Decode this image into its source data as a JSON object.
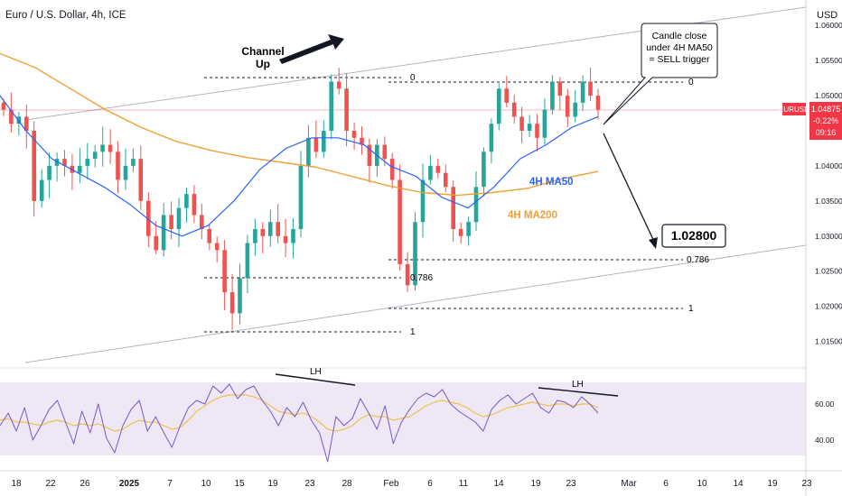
{
  "header": {
    "title": "Euro / U.S. Dollar, 4h, ICE",
    "currency": "USD"
  },
  "price_badge": {
    "symbol": "EURUSD",
    "price": "1.04875",
    "change": "-0.22%",
    "countdown": "09:16"
  },
  "annotations": {
    "channel": [
      "Channel",
      "Up"
    ],
    "callout": [
      "Candle close",
      "under 4H MA50",
      "= SELL trigger"
    ],
    "target": "1.02800",
    "ma50": "4H MA50",
    "ma200": "4H MA200",
    "fib_left": {
      "zero": "0",
      "level": "0.786",
      "one": "1"
    },
    "fib_right": {
      "zero": "0",
      "level": "0.786",
      "one": "1"
    },
    "lh_left": "LH",
    "lh_right": "LH"
  },
  "colors": {
    "candle_up": "#26a69a",
    "candle_down": "#ef5350",
    "ma50": "#2962ff",
    "ma200": "#f2a033",
    "rsi_line": "#7e57c2",
    "rsi_ma": "#f0c24a",
    "rsi_band": "#ede7f6",
    "badge": "#f23645"
  },
  "chart_data": {
    "type": "line",
    "title": "Euro / U.S. Dollar, 4h, ICE",
    "x_ticks": [
      "18",
      "22",
      "26",
      "2025",
      "7",
      "10",
      "15",
      "19",
      "23",
      "28",
      "Feb",
      "6",
      "11",
      "14",
      "19",
      "23",
      "Mar",
      "6",
      "10",
      "14",
      "19",
      "23"
    ],
    "y_ticks": [
      "1.06000",
      "1.05500",
      "1.05000",
      "1.04500",
      "1.04000",
      "1.03500",
      "1.03000",
      "1.02500",
      "1.02000",
      "1.01500"
    ],
    "ylim": [
      1.0125,
      1.0625
    ],
    "rsi_ticks": [
      "60.00",
      "40.00"
    ],
    "rsi_ylim": [
      25,
      75
    ],
    "current_price": 1.04875,
    "target_price": 1.028,
    "series": [
      {
        "name": "EURUSD",
        "values": [
          1.048,
          1.046,
          1.047,
          1.045,
          1.035,
          1.038,
          1.04,
          1.041,
          1.04,
          1.039,
          1.04,
          1.041,
          1.042,
          1.043,
          1.042,
          1.038,
          1.04,
          1.041,
          1.035,
          1.03,
          1.028,
          1.033,
          1.031,
          1.034,
          1.036,
          1.033,
          1.031,
          1.029,
          1.028,
          1.022,
          1.019,
          1.024,
          1.029,
          1.031,
          1.03,
          1.032,
          1.03,
          1.029,
          1.031,
          1.04,
          1.044,
          1.042,
          1.045,
          1.052,
          1.051,
          1.045,
          1.044,
          1.043,
          1.04,
          1.043,
          1.041,
          1.038,
          1.026,
          1.023,
          1.032,
          1.038,
          1.04,
          1.039,
          1.037,
          1.031,
          1.03,
          1.032,
          1.037,
          1.042,
          1.046,
          1.051,
          1.049,
          1.047,
          1.045,
          1.046,
          1.044,
          1.048,
          1.052,
          1.05,
          1.047,
          1.049,
          1.052,
          1.05,
          1.048
        ]
      },
      {
        "name": "4H MA50",
        "values": [
          1.05,
          1.045,
          1.041,
          1.039,
          1.037,
          1.0345,
          1.0315,
          1.03,
          1.0315,
          1.035,
          1.0395,
          1.0425,
          1.044,
          1.044,
          1.043,
          1.04,
          1.0385,
          1.0355,
          1.034,
          1.037,
          1.041,
          1.043,
          1.0455,
          1.047
        ]
      },
      {
        "name": "4H MA200",
        "values": [
          1.056,
          1.054,
          1.051,
          1.048,
          1.0455,
          1.0435,
          1.0422,
          1.0412,
          1.0405,
          1.0398,
          1.0385,
          1.0372,
          1.0362,
          1.0358,
          1.0362,
          1.0368,
          1.0382,
          1.0392
        ]
      },
      {
        "name": "RSI",
        "values": [
          48,
          55,
          45,
          58,
          40,
          48,
          57,
          62,
          50,
          38,
          56,
          44,
          60,
          41,
          33,
          48,
          57,
          62,
          45,
          53,
          44,
          36,
          48,
          58,
          62,
          60,
          70,
          66,
          71,
          63,
          68,
          70,
          62,
          56,
          48,
          58,
          53,
          61,
          51,
          44,
          28,
          53,
          48,
          52,
          63,
          55,
          46,
          59,
          38,
          50,
          57,
          63,
          66,
          64,
          68,
          60,
          56,
          53,
          50,
          45,
          57,
          62,
          65,
          60,
          63,
          66,
          58,
          55,
          62,
          61,
          58,
          64,
          60,
          55
        ]
      },
      {
        "name": "RSI MA",
        "values": [
          51,
          52,
          50,
          50,
          49,
          48,
          50,
          51,
          50,
          48,
          49,
          48,
          49,
          47,
          45,
          46,
          49,
          51,
          50,
          50,
          48,
          46,
          47,
          51,
          56,
          59,
          62,
          64,
          65,
          65,
          65,
          64,
          62,
          59,
          56,
          55,
          54,
          55,
          53,
          50,
          46,
          45,
          46,
          48,
          52,
          54,
          53,
          53,
          51,
          52,
          53,
          56,
          59,
          61,
          62,
          61,
          60,
          58,
          55,
          53,
          54,
          56,
          58,
          59,
          60,
          61,
          60,
          59,
          60,
          60,
          59,
          60,
          60,
          58
        ]
      }
    ]
  }
}
